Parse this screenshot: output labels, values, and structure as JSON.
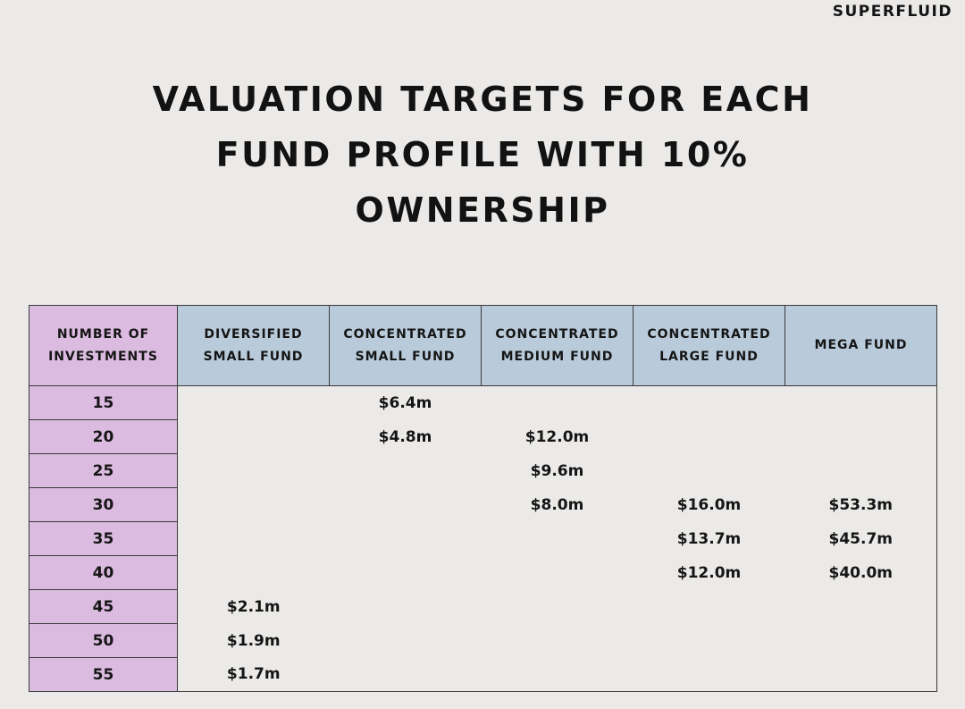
{
  "brand": "SUPERFLUID",
  "chart_data": {
    "type": "table",
    "title": "VALUATION TARGETS FOR EACH FUND PROFILE WITH 10% OWNERSHIP",
    "row_header": "NUMBER OF INVESTMENTS",
    "columns": [
      "DIVERSIFIED SMALL FUND",
      "CONCENTRATED SMALL FUND",
      "CONCENTRATED MEDIUM FUND",
      "CONCENTRATED LARGE FUND",
      "MEGA FUND"
    ],
    "rows": [
      {
        "investments": "15",
        "values": [
          "",
          "$6.4m",
          "",
          "",
          ""
        ]
      },
      {
        "investments": "20",
        "values": [
          "",
          "$4.8m",
          "$12.0m",
          "",
          ""
        ]
      },
      {
        "investments": "25",
        "values": [
          "",
          "",
          "$9.6m",
          "",
          ""
        ]
      },
      {
        "investments": "30",
        "values": [
          "",
          "",
          "$8.0m",
          "$16.0m",
          "$53.3m"
        ]
      },
      {
        "investments": "35",
        "values": [
          "",
          "",
          "",
          "$13.7m",
          "$45.7m"
        ]
      },
      {
        "investments": "40",
        "values": [
          "",
          "",
          "",
          "$12.0m",
          "$40.0m"
        ]
      },
      {
        "investments": "45",
        "values": [
          "$2.1m",
          "",
          "",
          "",
          ""
        ]
      },
      {
        "investments": "50",
        "values": [
          "$1.9m",
          "",
          "",
          "",
          ""
        ]
      },
      {
        "investments": "55",
        "values": [
          "$1.7m",
          "",
          "",
          "",
          ""
        ]
      }
    ],
    "colors": {
      "background": "#ebeae8",
      "row_header_fill": "#dbbbe0",
      "column_header_fill": "#b9cbdb",
      "border": "#3a3a3a"
    }
  }
}
